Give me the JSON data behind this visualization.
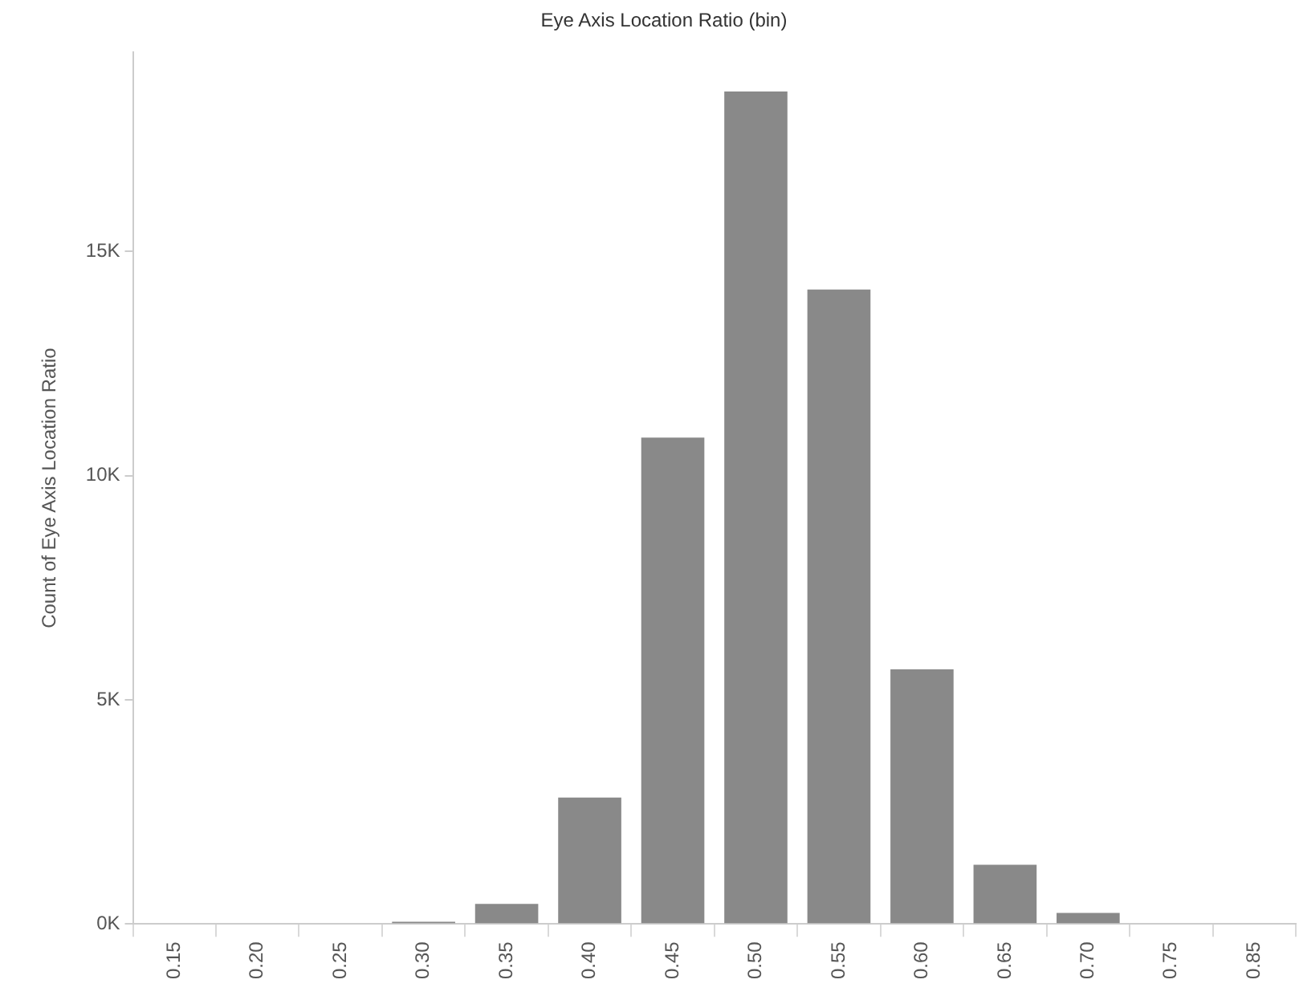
{
  "chart_data": {
    "type": "bar",
    "title": "Eye Axis Location Ratio (bin)",
    "ylabel": "Count of Eye Axis Location Ratio",
    "categories": [
      "0.15",
      "0.20",
      "0.25",
      "0.30",
      "0.35",
      "0.40",
      "0.45",
      "0.50",
      "0.55",
      "0.60",
      "0.65",
      "0.70",
      "0.75",
      "0.85"
    ],
    "values": [
      0,
      0,
      0,
      50,
      450,
      2820,
      10850,
      18570,
      14150,
      5680,
      1320,
      245,
      0,
      0
    ],
    "color": "#898989",
    "ylim": [
      0,
      19450
    ],
    "yticks": [
      {
        "value": 0,
        "label": "0K"
      },
      {
        "value": 5000,
        "label": "5K"
      },
      {
        "value": 10000,
        "label": "10K"
      },
      {
        "value": 15000,
        "label": "15K"
      }
    ]
  }
}
